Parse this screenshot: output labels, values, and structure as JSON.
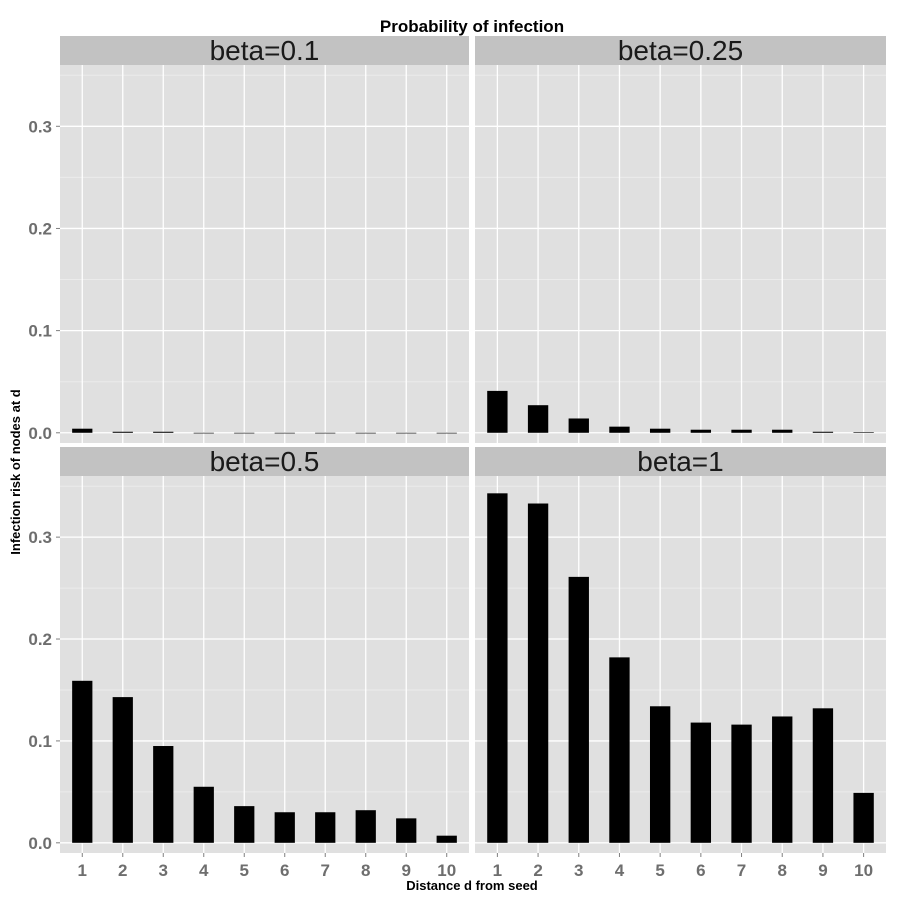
{
  "chart_data": {
    "type": "bar",
    "title": "Probability of infection",
    "xlabel": "Distance d from seed",
    "ylabel": "Infection risk of nodes at d",
    "categories": [
      "1",
      "2",
      "3",
      "4",
      "5",
      "6",
      "7",
      "8",
      "9",
      "10"
    ],
    "ylim": [
      -0.01,
      0.36
    ],
    "yticks": [
      "0.0",
      "0.1",
      "0.2",
      "0.3"
    ],
    "grid": true,
    "bar_color": "#000000",
    "panel_background": "#e0e0e0",
    "strip_background": "#c2c2c2",
    "panels": [
      {
        "label": "beta=0.1",
        "values": [
          0.004,
          0.001,
          0.001,
          0.0,
          0.0,
          0.0,
          0.0,
          0.0,
          0.0,
          0.0
        ]
      },
      {
        "label": "beta=0.25",
        "values": [
          0.041,
          0.027,
          0.014,
          0.006,
          0.004,
          0.003,
          0.003,
          0.003,
          0.001,
          0.0005
        ]
      },
      {
        "label": "beta=0.5",
        "values": [
          0.159,
          0.143,
          0.095,
          0.055,
          0.036,
          0.03,
          0.03,
          0.032,
          0.024,
          0.007
        ]
      },
      {
        "label": "beta=1",
        "values": [
          0.343,
          0.333,
          0.261,
          0.182,
          0.134,
          0.118,
          0.116,
          0.124,
          0.132,
          0.049
        ]
      }
    ]
  }
}
